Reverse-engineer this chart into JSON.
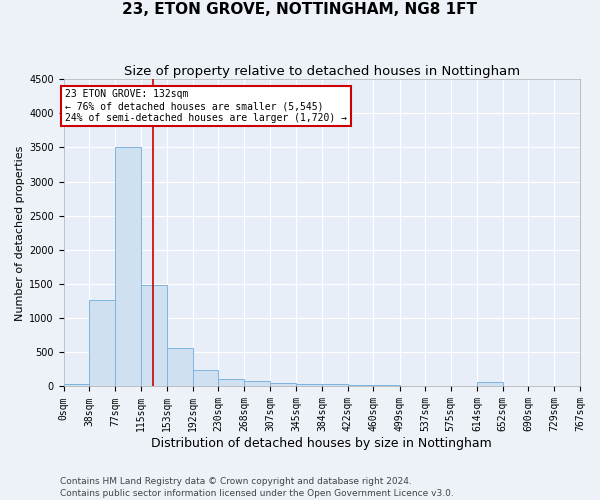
{
  "title": "23, ETON GROVE, NOTTINGHAM, NG8 1FT",
  "subtitle": "Size of property relative to detached houses in Nottingham",
  "xlabel": "Distribution of detached houses by size in Nottingham",
  "ylabel": "Number of detached properties",
  "bar_color": "#cfe0f0",
  "bar_edge_color": "#7db4de",
  "background_color": "#e8eef8",
  "fig_background_color": "#edf1f8",
  "grid_color": "#ffffff",
  "vline_x": 132,
  "vline_color": "#cc0000",
  "annotation_text": "23 ETON GROVE: 132sqm\n← 76% of detached houses are smaller (5,545)\n24% of semi-detached houses are larger (1,720) →",
  "annotation_box_color": "#ffffff",
  "annotation_box_edge": "#cc0000",
  "bin_edges": [
    0,
    38,
    77,
    115,
    153,
    192,
    230,
    268,
    307,
    345,
    384,
    422,
    460,
    499,
    537,
    575,
    614,
    652,
    690,
    729,
    767
  ],
  "bar_heights": [
    40,
    1270,
    3500,
    1480,
    570,
    240,
    115,
    80,
    55,
    30,
    35,
    25,
    15,
    5,
    0,
    0,
    60,
    0,
    0,
    0
  ],
  "ylim": [
    0,
    4500
  ],
  "yticks": [
    0,
    500,
    1000,
    1500,
    2000,
    2500,
    3000,
    3500,
    4000,
    4500
  ],
  "footer": "Contains HM Land Registry data © Crown copyright and database right 2024.\nContains public sector information licensed under the Open Government Licence v3.0.",
  "title_fontsize": 11,
  "subtitle_fontsize": 9.5,
  "xlabel_fontsize": 9,
  "ylabel_fontsize": 8,
  "tick_fontsize": 7,
  "footer_fontsize": 6.5
}
